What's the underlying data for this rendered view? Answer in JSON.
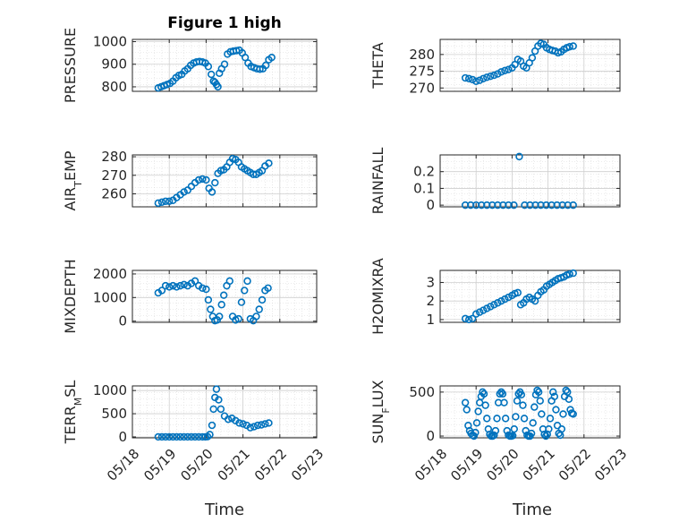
{
  "figure": {
    "title": "Figure 1 high",
    "xlabel": "Time",
    "marker_color": "#0072BD",
    "axis_color": "#262626"
  },
  "chart_data": [
    {
      "type": "scatter",
      "ylabel": "PRESSURE",
      "xlim": [
        0,
        5
      ],
      "xticks": [],
      "ylim": [
        780,
        1010
      ],
      "yticks": [
        800,
        900,
        1000
      ],
      "x": [
        0.7,
        0.78,
        0.86,
        0.94,
        1.02,
        1.1,
        1.18,
        1.26,
        1.34,
        1.42,
        1.5,
        1.58,
        1.66,
        1.74,
        1.82,
        1.9,
        1.98,
        2.06,
        2.14,
        2.2,
        2.24,
        2.28,
        2.32,
        2.36,
        2.42,
        2.5,
        2.58,
        2.66,
        2.74,
        2.82,
        2.9,
        2.98,
        3.06,
        3.14,
        3.22,
        3.3,
        3.38,
        3.46,
        3.54,
        3.62,
        3.7,
        3.78
      ],
      "y": [
        795,
        800,
        805,
        810,
        815,
        825,
        840,
        850,
        855,
        870,
        880,
        895,
        905,
        910,
        912,
        910,
        905,
        890,
        855,
        825,
        820,
        810,
        800,
        860,
        880,
        900,
        945,
        955,
        958,
        960,
        962,
        950,
        930,
        905,
        890,
        885,
        880,
        878,
        880,
        895,
        920,
        930
      ]
    },
    {
      "type": "scatter",
      "ylabel": "THETA",
      "xlim": [
        0,
        5
      ],
      "xticks": [],
      "ylim": [
        269,
        284.5
      ],
      "yticks": [
        270,
        275,
        280
      ],
      "x": [
        0.7,
        0.8,
        0.9,
        1.0,
        1.1,
        1.2,
        1.3,
        1.4,
        1.5,
        1.6,
        1.7,
        1.8,
        1.9,
        2.0,
        2.08,
        2.16,
        2.24,
        2.32,
        2.4,
        2.48,
        2.56,
        2.64,
        2.72,
        2.8,
        2.88,
        2.96,
        3.04,
        3.12,
        3.2,
        3.28,
        3.36,
        3.44,
        3.52,
        3.6,
        3.7
      ],
      "y": [
        273,
        272.8,
        272.5,
        272.0,
        272.3,
        272.8,
        273.2,
        273.5,
        273.8,
        274.2,
        274.8,
        275.2,
        275.5,
        276.0,
        277.0,
        278.5,
        278.0,
        276.5,
        276.0,
        277.5,
        279.0,
        281.0,
        282.5,
        283.3,
        283.0,
        282.0,
        281.5,
        281.2,
        281.0,
        280.5,
        280.8,
        281.5,
        282.0,
        282.3,
        282.5
      ]
    },
    {
      "type": "scatter",
      "ylabel": "AIR_TEMP",
      "xlim": [
        0,
        5
      ],
      "xticks": [],
      "ylim": [
        253,
        281
      ],
      "yticks": [
        260,
        270,
        280
      ],
      "x": [
        0.7,
        0.8,
        0.9,
        1.0,
        1.1,
        1.2,
        1.3,
        1.4,
        1.5,
        1.6,
        1.7,
        1.8,
        1.9,
        2.0,
        2.08,
        2.16,
        2.24,
        2.32,
        2.4,
        2.48,
        2.56,
        2.64,
        2.72,
        2.8,
        2.88,
        2.96,
        3.04,
        3.12,
        3.2,
        3.28,
        3.36,
        3.44,
        3.52,
        3.6,
        3.7
      ],
      "y": [
        255,
        255.5,
        256,
        256,
        256.5,
        258,
        259.5,
        261,
        262,
        264,
        266,
        267.5,
        268,
        267.5,
        263,
        261,
        266,
        271,
        272.5,
        273,
        274.5,
        277,
        279,
        278.5,
        277,
        274.5,
        273.5,
        272.5,
        271.5,
        270.5,
        270.5,
        271.5,
        272.5,
        275,
        276.5
      ]
    },
    {
      "type": "scatter",
      "ylabel": "RAINFALL",
      "xlim": [
        0,
        5
      ],
      "xticks": [],
      "ylim": [
        -0.01,
        0.3
      ],
      "yticks": [
        0,
        0.1,
        0.2
      ],
      "x": [
        0.7,
        0.85,
        1.0,
        1.15,
        1.3,
        1.45,
        1.6,
        1.75,
        1.9,
        2.05,
        2.2,
        2.35,
        2.5,
        2.65,
        2.8,
        2.95,
        3.1,
        3.25,
        3.4,
        3.55,
        3.7
      ],
      "y": [
        0,
        0,
        0,
        0,
        0,
        0,
        0,
        0,
        0,
        0,
        0.29,
        0,
        0,
        0,
        0,
        0,
        0,
        0,
        0,
        0,
        0
      ]
    },
    {
      "type": "scatter",
      "ylabel": "MIXDEPTH",
      "xlim": [
        0,
        5
      ],
      "xticks": [],
      "ylim": [
        -50,
        2150
      ],
      "yticks": [
        0,
        1000,
        2000
      ],
      "x": [
        0.7,
        0.8,
        0.9,
        1.0,
        1.1,
        1.2,
        1.3,
        1.4,
        1.5,
        1.6,
        1.7,
        1.8,
        1.9,
        2.0,
        2.06,
        2.12,
        2.18,
        2.24,
        2.3,
        2.36,
        2.42,
        2.48,
        2.56,
        2.64,
        2.72,
        2.8,
        2.88,
        2.96,
        3.04,
        3.12,
        3.2,
        3.28,
        3.36,
        3.44,
        3.52,
        3.6,
        3.68
      ],
      "y": [
        1200,
        1300,
        1500,
        1450,
        1500,
        1450,
        1500,
        1550,
        1500,
        1600,
        1700,
        1500,
        1400,
        1350,
        900,
        500,
        200,
        20,
        50,
        200,
        700,
        1100,
        1500,
        1700,
        200,
        50,
        100,
        800,
        1300,
        1700,
        100,
        20,
        200,
        500,
        900,
        1300,
        1400
      ]
    },
    {
      "type": "scatter",
      "ylabel": "H2OMIXRA",
      "xlim": [
        0,
        5
      ],
      "xticks": [],
      "ylim": [
        0.85,
        3.65
      ],
      "yticks": [
        1,
        2,
        3
      ],
      "x": [
        0.7,
        0.8,
        0.9,
        1.0,
        1.1,
        1.2,
        1.3,
        1.4,
        1.5,
        1.6,
        1.7,
        1.8,
        1.9,
        2.0,
        2.08,
        2.16,
        2.24,
        2.32,
        2.4,
        2.48,
        2.56,
        2.64,
        2.72,
        2.8,
        2.88,
        2.96,
        3.04,
        3.12,
        3.2,
        3.28,
        3.36,
        3.44,
        3.52,
        3.6,
        3.7
      ],
      "y": [
        1.05,
        1.0,
        1.05,
        1.3,
        1.4,
        1.5,
        1.6,
        1.7,
        1.8,
        1.9,
        2.0,
        2.1,
        2.2,
        2.3,
        2.4,
        2.45,
        1.8,
        1.9,
        2.1,
        2.2,
        2.1,
        2.0,
        2.3,
        2.5,
        2.6,
        2.8,
        2.9,
        3.0,
        3.1,
        3.2,
        3.25,
        3.3,
        3.4,
        3.45,
        3.5
      ]
    },
    {
      "type": "scatter",
      "ylabel": "TERR_MSL",
      "xlim": [
        0,
        5
      ],
      "xticks": [
        "05/18",
        "05/19",
        "05/20",
        "05/21",
        "05/22",
        "05/23"
      ],
      "ylim": [
        -20,
        1100
      ],
      "yticks": [
        0,
        500,
        1000
      ],
      "x": [
        0.7,
        0.8,
        0.9,
        1.0,
        1.1,
        1.2,
        1.3,
        1.4,
        1.5,
        1.6,
        1.7,
        1.8,
        1.9,
        1.98,
        2.04,
        2.1,
        2.16,
        2.2,
        2.24,
        2.28,
        2.34,
        2.4,
        2.5,
        2.6,
        2.7,
        2.8,
        2.9,
        3.0,
        3.1,
        3.2,
        3.3,
        3.4,
        3.5,
        3.6,
        3.7
      ],
      "y": [
        0,
        0,
        0,
        0,
        0,
        0,
        0,
        0,
        0,
        0,
        0,
        0,
        0,
        0,
        5,
        50,
        250,
        600,
        850,
        1030,
        800,
        600,
        450,
        380,
        400,
        350,
        300,
        280,
        250,
        200,
        220,
        250,
        260,
        280,
        300
      ]
    },
    {
      "type": "scatter",
      "ylabel": "SUN_FLUX",
      "xlim": [
        0,
        5
      ],
      "xticks": [
        "05/18",
        "05/19",
        "05/20",
        "05/21",
        "05/22",
        "05/23"
      ],
      "ylim": [
        -20,
        570
      ],
      "yticks": [
        0,
        500
      ],
      "x": [
        0.7,
        0.74,
        0.78,
        0.82,
        0.86,
        0.9,
        0.94,
        0.98,
        1.02,
        1.06,
        1.1,
        1.14,
        1.18,
        1.22,
        1.26,
        1.3,
        1.34,
        1.38,
        1.42,
        1.46,
        1.5,
        1.54,
        1.58,
        1.62,
        1.66,
        1.7,
        1.74,
        1.78,
        1.82,
        1.86,
        1.9,
        1.94,
        1.98,
        2.02,
        2.06,
        2.1,
        2.14,
        2.18,
        2.22,
        2.26,
        2.3,
        2.34,
        2.38,
        2.42,
        2.46,
        2.5,
        2.54,
        2.58,
        2.62,
        2.66,
        2.7,
        2.74,
        2.78,
        2.82,
        2.86,
        2.9,
        2.94,
        2.98,
        3.02,
        3.06,
        3.1,
        3.14,
        3.18,
        3.22,
        3.26,
        3.3,
        3.34,
        3.38,
        3.42,
        3.46,
        3.5,
        3.54,
        3.58,
        3.62,
        3.66,
        3.7
      ],
      "y": [
        380,
        300,
        120,
        60,
        30,
        10,
        0,
        40,
        150,
        280,
        380,
        450,
        500,
        480,
        350,
        200,
        80,
        20,
        0,
        0,
        10,
        60,
        200,
        380,
        480,
        500,
        480,
        380,
        200,
        60,
        10,
        0,
        0,
        5,
        80,
        220,
        400,
        480,
        500,
        470,
        350,
        200,
        60,
        10,
        0,
        0,
        30,
        150,
        330,
        470,
        520,
        500,
        400,
        250,
        80,
        20,
        0,
        20,
        80,
        200,
        400,
        500,
        450,
        300,
        120,
        30,
        10,
        80,
        250,
        450,
        520,
        500,
        420,
        300,
        260,
        250
      ]
    }
  ]
}
